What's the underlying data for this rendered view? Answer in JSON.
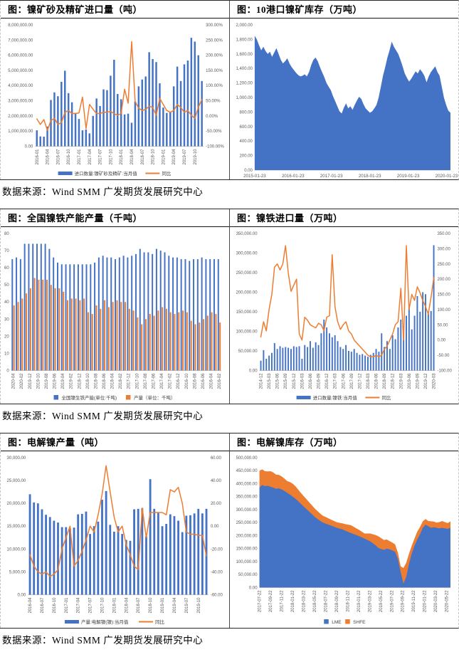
{
  "colors": {
    "blue": "#4472C4",
    "orange": "#ED7D31",
    "axis_text": "#595959",
    "legend_text": "#404040"
  },
  "sources": [
    "数据来源：Wind SMM  广发期货发展研究中心",
    "数据来源：Wind SMM  广发期货发展研究中心",
    "数据来源：Wind SMM  广发期货发展研究中心"
  ],
  "chart_data": [
    {
      "id": "nickel-ore-concentrate-imports",
      "type": "bar-line",
      "title": "图：镍矿砂及精矿进口量（吨）",
      "left_axis": {
        "min": 0,
        "max": 8000000,
        "step": 1000000,
        "format": "thousands2"
      },
      "right_axis": {
        "min": -100,
        "max": 300,
        "step": 50,
        "format": "pct2"
      },
      "x_rotated": true,
      "x_labels": [
        "2016-01",
        "2016-04",
        "2016-07",
        "2016-10",
        "2017-01",
        "2017-04",
        "2017-07",
        "2017-10",
        "2018-01",
        "2018-04",
        "2018-07",
        "2018-10",
        "2019-01",
        "2019-04",
        "2019-07",
        "2019-10"
      ],
      "bars": [
        1050000,
        650000,
        630000,
        1300000,
        3050000,
        3550000,
        3300000,
        4250000,
        4980000,
        3500000,
        2900000,
        2200000,
        1800000,
        1050000,
        1100000,
        850000,
        2000000,
        3150000,
        2650000,
        3750000,
        3700000,
        4650000,
        5700000,
        3450000,
        3100000,
        2100000,
        2150000,
        1550000,
        2950000,
        3950000,
        4400000,
        4600000,
        6200000,
        5750000,
        5550000,
        4150000,
        2550000,
        2200000,
        2250000,
        3950000,
        5250000,
        4300000,
        5400000,
        5650000,
        7150000,
        6900000,
        6000000,
        4300000
      ],
      "line": [
        -10,
        -28,
        -12,
        -48,
        -15,
        -8,
        -28,
        -22,
        12,
        18,
        8,
        8,
        10,
        62,
        -42,
        38,
        22,
        8,
        8,
        12,
        12,
        15,
        8,
        2,
        8,
        88,
        42,
        245,
        48,
        25,
        18,
        22,
        32,
        28,
        2,
        58,
        38,
        18,
        12,
        18,
        38,
        28,
        12,
        18,
        2,
        -8,
        28,
        55
      ],
      "legend": [
        {
          "swatch": "bar",
          "color": "blue",
          "label": "进口数量:镍矿砂及精矿:当月值"
        },
        {
          "swatch": "line",
          "color": "orange",
          "label": "同比"
        }
      ]
    },
    {
      "id": "ten-ports-nickel-ore-inventory",
      "type": "area",
      "title": "图：10港口镍矿库存（万吨）",
      "y_axis": {
        "min": 0,
        "max": 2000,
        "step": 200,
        "format": "thousands2"
      },
      "x_rotated": false,
      "x_labels": [
        "2015-01-23",
        "2016-01-23",
        "2017-01-23",
        "2018-01-23",
        "2019-01-23",
        "2020-01-23"
      ],
      "values": [
        1850,
        1800,
        1720,
        1650,
        1700,
        1640,
        1600,
        1630,
        1560,
        1620,
        1680,
        1600,
        1520,
        1470,
        1500,
        1540,
        1470,
        1420,
        1380,
        1340,
        1310,
        1290,
        1300,
        1320,
        1290,
        1350,
        1450,
        1520,
        1550,
        1500,
        1420,
        1350,
        1280,
        1200,
        1150,
        1100,
        1020,
        950,
        880,
        810,
        780,
        860,
        920,
        850,
        880,
        830,
        900,
        960,
        1010,
        980,
        910,
        850,
        820,
        790,
        810,
        850,
        900,
        1000,
        1150,
        1300,
        1420,
        1550,
        1650,
        1770,
        1700,
        1650,
        1600,
        1520,
        1430,
        1330,
        1270,
        1220,
        1260,
        1310,
        1360,
        1330,
        1390,
        1350,
        1300,
        1210,
        1290,
        1350,
        1390,
        1430,
        1350,
        1300,
        1150,
        1000,
        900,
        820,
        790
      ]
    },
    {
      "id": "npi-capacity-output",
      "type": "double-bar",
      "title": "图：全国镍铁产能产量（千吨）",
      "y_axis": {
        "min": 0,
        "max": 80,
        "step": 10,
        "format": "int"
      },
      "x_rotated": true,
      "x_labels": [
        "2020-04",
        "2020-02",
        "2019-12",
        "2019-10",
        "2019-08",
        "2019-06",
        "2019-04",
        "2019-02",
        "2018-12",
        "2018-10",
        "2018-08",
        "2018-06",
        "2018-04",
        "2018-02",
        "2017-12",
        "2017-10",
        "2017-08",
        "2017-06",
        "2017-04",
        "2017-02",
        "2016-12",
        "2016-10",
        "2016-08",
        "2016-06",
        "2016-04",
        "2016-02"
      ],
      "series": [
        {
          "name": "全国镍生铁产能(单位:千吨)",
          "color": "blue",
          "values": [
            65,
            66,
            65,
            74,
            74,
            74,
            74,
            74,
            74,
            71,
            66,
            63,
            62,
            62,
            62,
            62,
            62,
            62,
            62,
            62,
            63,
            66,
            67,
            66,
            66,
            65,
            66,
            67,
            66,
            67,
            68,
            71,
            69,
            69,
            68,
            71,
            70,
            69,
            67,
            66,
            66,
            65,
            65,
            64,
            65,
            65,
            66,
            65,
            65,
            65,
            65
          ]
        },
        {
          "name": "产量（单位：千吨）",
          "color": "orange",
          "values": [
            38,
            40,
            42,
            45,
            48,
            54,
            53,
            53,
            53,
            50,
            48,
            48,
            46,
            41,
            42,
            42,
            41,
            42,
            34,
            33,
            38,
            36,
            41,
            37,
            40,
            41,
            40,
            40,
            36,
            35,
            31,
            27,
            30,
            33,
            32,
            35,
            37,
            36,
            34,
            33,
            34,
            35,
            34,
            29,
            27,
            28,
            30,
            32,
            34,
            33,
            28
          ]
        }
      ],
      "legend": [
        {
          "swatch": "square",
          "color": "blue",
          "label": "全国镍生铁产能(单位:千吨)"
        },
        {
          "swatch": "square",
          "color": "orange",
          "label": "产量（单位：千吨）"
        }
      ]
    },
    {
      "id": "npi-imports",
      "type": "bar-line",
      "title": "图：镍铁进口量（万吨）",
      "left_axis": {
        "min": 0,
        "max": 350000,
        "step": 50000,
        "format": "thousands2"
      },
      "right_axis": {
        "min": -100,
        "max": 350,
        "step": 50,
        "format": "thousands2"
      },
      "x_rotated": true,
      "x_labels": [
        "2014-12",
        "2015-03",
        "2015-06",
        "2015-09",
        "2015-12",
        "2016-03",
        "2016-06",
        "2016-09",
        "2016-12",
        "2017-03",
        "2017-06",
        "2017-09",
        "2017-12",
        "2018-03",
        "2018-06",
        "2018-09",
        "2018-12",
        "2019-03",
        "2019-06",
        "2019-09",
        "2019-12",
        "2020-03"
      ],
      "bars": [
        25000,
        52000,
        30000,
        38000,
        45000,
        70000,
        55000,
        62000,
        58000,
        60000,
        58000,
        55000,
        62000,
        60000,
        62000,
        30000,
        65000,
        60000,
        75000,
        58000,
        72000,
        65000,
        95000,
        130000,
        110000,
        95000,
        85000,
        90000,
        75000,
        60000,
        55000,
        65000,
        50000,
        48000,
        55000,
        45000,
        40000,
        42000,
        38000,
        35000,
        40000,
        45000,
        55000,
        48000,
        95000,
        60000,
        75000,
        55000,
        90000,
        80000,
        110000,
        130000,
        100000,
        140000,
        160000,
        105000,
        140000,
        190000,
        150000,
        200000,
        195000,
        150000,
        152000,
        320000
      ],
      "line": [
        10,
        60,
        30,
        100,
        150,
        240,
        250,
        230,
        250,
        310,
        220,
        160,
        180,
        200,
        20,
        0,
        75,
        65,
        50,
        45,
        40,
        55,
        50,
        30,
        75,
        80,
        280,
        110,
        60,
        35,
        50,
        60,
        30,
        20,
        0,
        -10,
        -20,
        -30,
        -40,
        -50,
        -55,
        -55,
        -50,
        -55,
        -50,
        -30,
        -20,
        0,
        20,
        50,
        60,
        170,
        0,
        310,
        100,
        150,
        130,
        175,
        155,
        130,
        110,
        85,
        140,
        205
      ],
      "legend": [
        {
          "swatch": "bar",
          "color": "blue",
          "label": "进口数量:镍铁:当月值"
        },
        {
          "swatch": "line",
          "color": "orange",
          "label": "同比"
        }
      ]
    },
    {
      "id": "refined-nickel-output",
      "type": "bar-line",
      "title": "图：电解镍产量（吨）",
      "left_axis": {
        "min": 0,
        "max": 30000,
        "step": 5000,
        "format": "thousands2"
      },
      "right_axis": {
        "min": -60,
        "max": 60,
        "step": 20,
        "format": "thousands2"
      },
      "x_rotated": true,
      "x_labels": [
        "2016-04",
        "2016-07",
        "2016-10",
        "2017-01",
        "2017-04",
        "2017-07",
        "2017-10",
        "2018-01",
        "2018-04",
        "2018-07",
        "2018-10",
        "2019-01",
        "2019-04",
        "2019-07",
        "2019-10"
      ],
      "bars": [
        22000,
        20200,
        20000,
        18700,
        17500,
        17000,
        16200,
        15800,
        14800,
        14800,
        14500,
        14700,
        17600,
        17700,
        18200,
        13300,
        15000,
        16000,
        20800,
        22700,
        15300,
        13800,
        15000,
        13300,
        12000,
        11800,
        18700,
        18800,
        18900,
        12800,
        25300,
        18800,
        17900,
        15000,
        15500,
        17600,
        17200,
        16200,
        13700,
        17300,
        17400,
        17800,
        18800,
        17800,
        18800
      ],
      "line": [
        -25,
        -35,
        -40,
        -42,
        -40,
        -44,
        -42,
        -38,
        -20,
        -10,
        0,
        -35,
        -30,
        -22,
        -12,
        0,
        -5,
        10,
        28,
        53,
        30,
        8,
        -5,
        0,
        -16,
        -25,
        -35,
        -38,
        16,
        -10,
        12,
        12,
        12,
        12,
        10,
        32,
        30,
        34,
        20,
        -5,
        -7,
        -7,
        -8,
        -8,
        -26
      ],
      "legend": [
        {
          "swatch": "bar",
          "color": "blue",
          "label": "产量:电解镍(镍):当月值"
        },
        {
          "swatch": "line",
          "color": "orange",
          "label": "同比"
        }
      ]
    },
    {
      "id": "refined-nickel-inventory",
      "type": "stacked-area",
      "title": "图：电解镍库存（万吨）",
      "y_axis": {
        "min": 0,
        "max": 500000,
        "step": 50000,
        "format": "thousands2"
      },
      "x_rotated": true,
      "x_labels": [
        "2017-07-22",
        "2017-09-22",
        "2017-11-22",
        "2018-01-22",
        "2018-03-22",
        "2018-05-22",
        "2018-07-22",
        "2018-09-22",
        "2018-11-22",
        "2019-01-22",
        "2019-03-22",
        "2019-05-22",
        "2019-07-22",
        "2019-09-22",
        "2019-11-22",
        "2020-01-22",
        "2020-03-22",
        "2020-05-22"
      ],
      "series": [
        {
          "name": "LME",
          "color": "blue",
          "values": [
            385000,
            395000,
            390000,
            392000,
            388000,
            385000,
            380000,
            382000,
            378000,
            372000,
            365000,
            358000,
            350000,
            342000,
            332000,
            322000,
            312000,
            302000,
            292000,
            282000,
            272000,
            264000,
            256000,
            250000,
            246000,
            242000,
            238000,
            234000,
            230000,
            227000,
            224000,
            219000,
            214000,
            210000,
            206000,
            202000,
            198000,
            193000,
            188000,
            183000,
            178000,
            170000,
            162000,
            152000,
            148000,
            145000,
            150000,
            147000,
            143000,
            138000,
            110000,
            60000,
            15000,
            40000,
            90000,
            130000,
            160000,
            185000,
            205000,
            230000,
            242000,
            236000,
            230000,
            232000,
            230000,
            228000,
            230000,
            228000,
            226000,
            230000
          ]
        },
        {
          "name": "SHFE",
          "color": "orange",
          "values": [
            65000,
            60000,
            58000,
            55000,
            60000,
            58000,
            55000,
            52000,
            50000,
            48000,
            45000,
            48000,
            50000,
            48000,
            45000,
            42000,
            40000,
            38000,
            36000,
            34000,
            32000,
            30000,
            28000,
            26000,
            25000,
            24000,
            23000,
            22000,
            21000,
            22000,
            23000,
            25000,
            28000,
            30000,
            28000,
            26000,
            24000,
            22000,
            20000,
            25000,
            30000,
            35000,
            40000,
            45000,
            42000,
            38000,
            35000,
            32000,
            30000,
            28000,
            25000,
            22000,
            60000,
            55000,
            40000,
            30000,
            28000,
            30000,
            28000,
            25000,
            22000,
            20000,
            25000,
            22000,
            20000,
            24000,
            26000,
            24000,
            22000,
            25000
          ]
        }
      ],
      "legend": [
        {
          "swatch": "square",
          "color": "blue",
          "label": "LME"
        },
        {
          "swatch": "square",
          "color": "orange",
          "label": "SHFE"
        }
      ]
    }
  ]
}
